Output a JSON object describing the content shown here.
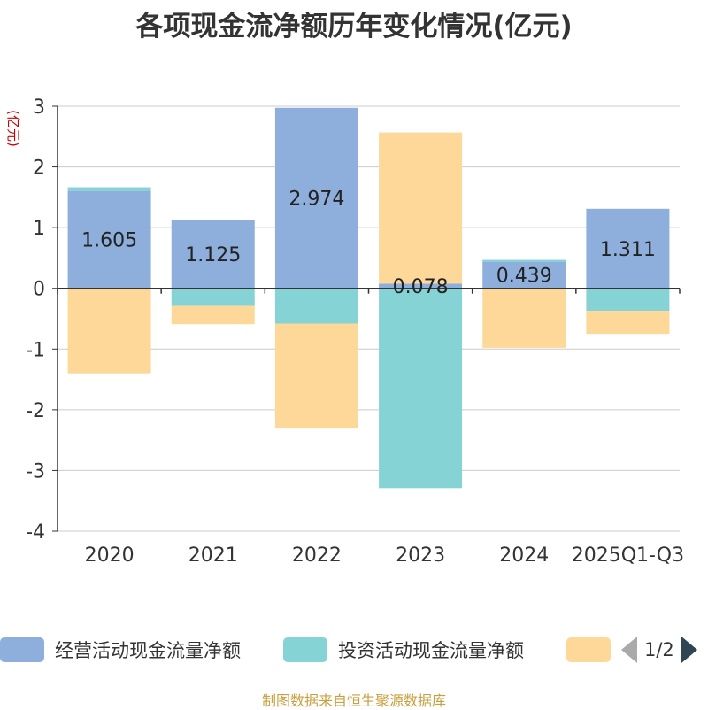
{
  "title": "各项现金流净额历年变化情况(亿元)",
  "source": "制图数据来自恒生聚源数据库",
  "legend_pager": "1/2",
  "colors": {
    "operating": "#8eaedb",
    "investing": "#86d3d6",
    "financing": "#fed898",
    "axis": "#333333",
    "grid": "#cccccc",
    "ylabel": "#cc0000"
  },
  "chart_data": {
    "type": "bar",
    "stacked": true,
    "title": "各项现金流净额历年变化情况(亿元)",
    "ylabel": "(亿元)",
    "ylim": [
      -4,
      3
    ],
    "yticks": [
      -4,
      -3,
      -2,
      -1,
      0,
      1,
      2,
      3
    ],
    "grid": true,
    "legend_position": "bottom",
    "categories": [
      "2020",
      "2021",
      "2022",
      "2023",
      "2024",
      "2025Q1-Q3"
    ],
    "series": [
      {
        "name": "经营活动现金流量净额",
        "values": [
          1.605,
          1.125,
          2.974,
          0.078,
          0.439,
          1.311
        ],
        "labels": [
          "1.605",
          "1.125",
          "2.974",
          "0.078",
          "0.439",
          "1.311"
        ]
      },
      {
        "name": "投资活动现金流量净额",
        "values": [
          0.06,
          -0.29,
          -0.58,
          -3.29,
          0.03,
          -0.37
        ]
      },
      {
        "name": "",
        "values": [
          -1.4,
          -0.3,
          -1.73,
          2.49,
          -0.98,
          -0.38
        ]
      }
    ]
  }
}
